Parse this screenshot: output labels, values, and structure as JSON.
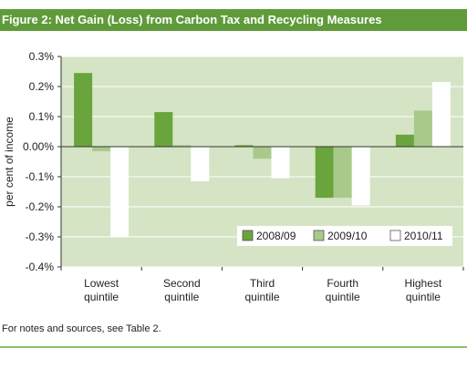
{
  "header": {
    "title": "Figure 2: Net Gain (Loss) from Carbon Tax and Recycling Measures"
  },
  "footer": {
    "note": "For notes and sources, see Table 2."
  },
  "colors": {
    "title_bar": "#5f9b3a",
    "plot_background": "#d4e4c4",
    "series": [
      "#6aa43c",
      "#a9c98b",
      "#ffffff"
    ],
    "rule": "#8dbf6a"
  },
  "chart_data": {
    "type": "bar",
    "title": "Figure 2: Net Gain (Loss) from Carbon Tax and Recycling Measures",
    "ylabel": "per cent of income",
    "xlabel": "",
    "categories": [
      [
        "Lowest",
        "quintile"
      ],
      [
        "Second",
        "quintile"
      ],
      [
        "Third",
        "quintile"
      ],
      [
        "Fourth",
        "quintile"
      ],
      [
        "Highest",
        "quintile"
      ]
    ],
    "series": [
      {
        "name": "2008/09",
        "values": [
          0.245,
          0.115,
          0.005,
          -0.17,
          0.04
        ]
      },
      {
        "name": "2009/10",
        "values": [
          -0.015,
          0.005,
          -0.04,
          -0.17,
          0.12
        ]
      },
      {
        "name": "2010/11",
        "values": [
          -0.3,
          -0.115,
          -0.105,
          -0.195,
          0.215
        ]
      }
    ],
    "ylim": [
      -0.4,
      0.3
    ],
    "yticks": [
      "0.3%",
      "0.2%",
      "0.1%",
      "0.00%",
      "-0.1%",
      "-0.2%",
      "-0.3%",
      "-0.4%"
    ],
    "ytick_values": [
      0.3,
      0.2,
      0.1,
      0.0,
      -0.1,
      -0.2,
      -0.3,
      -0.4
    ],
    "grid": true,
    "legend_position": "bottom-right"
  }
}
